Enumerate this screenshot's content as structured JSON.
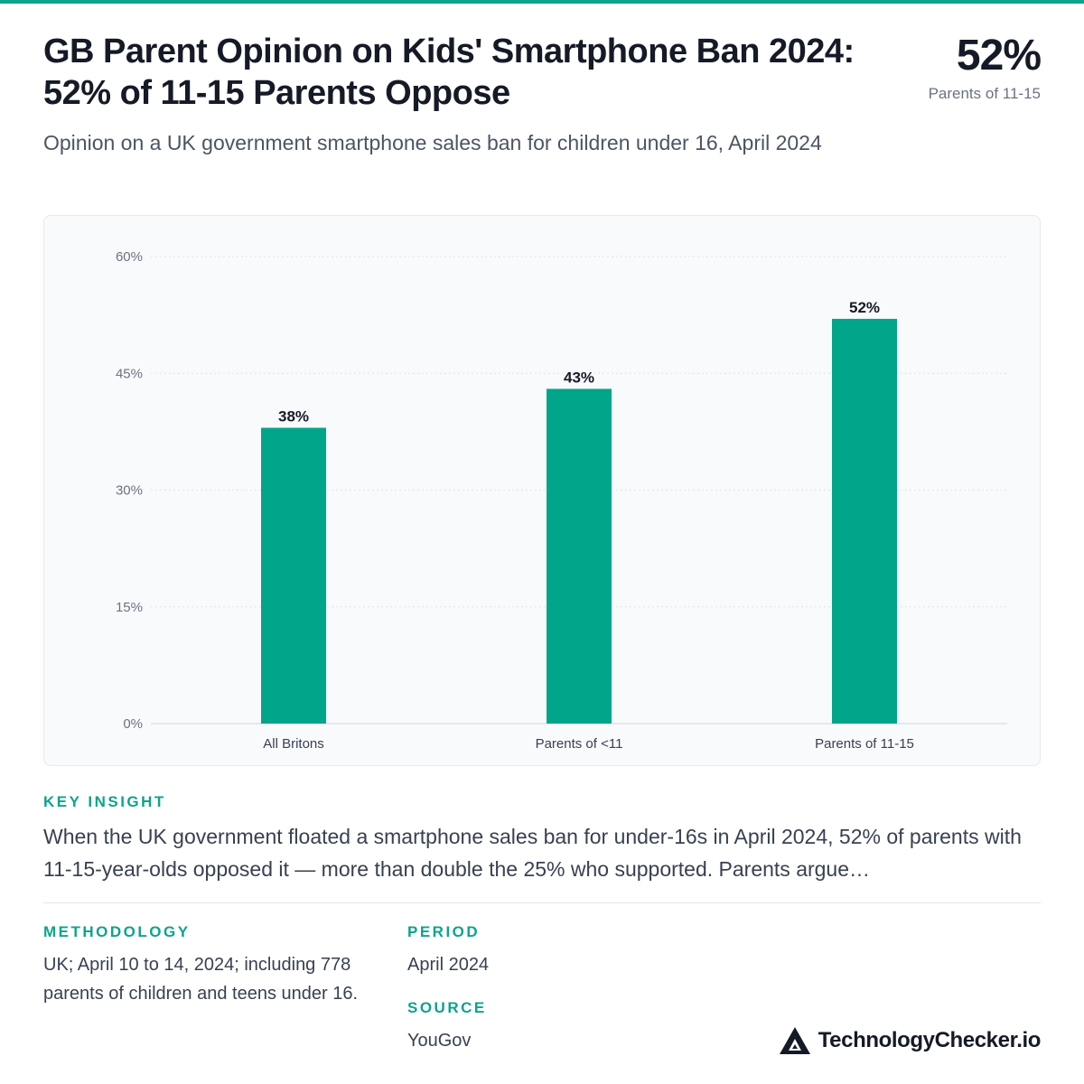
{
  "header": {
    "title_line1": "GB Parent Opinion on Kids' Smartphone Ban 2024:",
    "title_line2": "52% of 11-15 Parents Oppose",
    "subtitle": "Opinion on a UK government smartphone sales ban for children under 16, April 2024",
    "kpi_value": "52%",
    "kpi_label": "Parents of 11-15"
  },
  "chart_data": {
    "type": "bar",
    "categories": [
      "All Britons",
      "Parents of <11",
      "Parents of 11-15"
    ],
    "values": [
      38,
      43,
      52
    ],
    "value_labels": [
      "38%",
      "43%",
      "52%"
    ],
    "ylim": [
      0,
      60
    ],
    "yticks": [
      0,
      15,
      30,
      45,
      60
    ],
    "ytick_labels": [
      "0%",
      "15%",
      "30%",
      "45%",
      "60%"
    ],
    "bar_color": "#00a58a",
    "grid": true
  },
  "insight": {
    "label": "KEY INSIGHT",
    "text": "When the UK government floated a smartphone sales ban for under-16s in April 2024, 52% of parents with 11-15-year-olds opposed it — more than double the 25% who supported. Parents argue…"
  },
  "meta": {
    "methodology_label": "METHODOLOGY",
    "methodology_text": "UK; April 10 to 14, 2024; including 778 parents of children and teens under 16.",
    "period_label": "PERIOD",
    "period_text": "April 2024",
    "source_label": "SOURCE",
    "source_text": "YouGov"
  },
  "brand": {
    "name": "TechnologyChecker.io",
    "icon": "triangle-logo-icon"
  },
  "colors": {
    "accent": "#0fa38b",
    "bar": "#00a58a"
  }
}
